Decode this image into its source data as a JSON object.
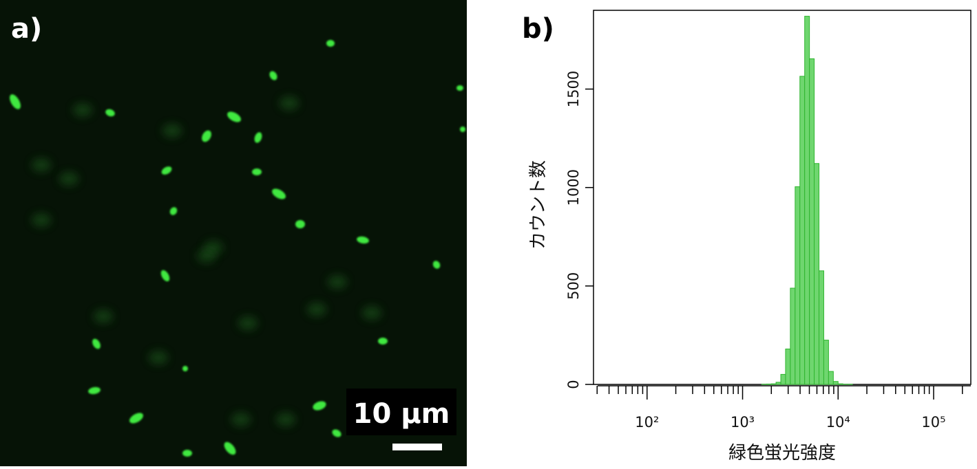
{
  "panel_a": {
    "label": "a)",
    "scale_bar_label": "10 µm"
  },
  "chart_data": {
    "type": "histogram",
    "panel_label": "b)",
    "x_label": "緑色蛍光強度",
    "y_label": "カウント数",
    "x_log": true,
    "bins": [
      1585,
      1778,
      1995,
      2239,
      2512,
      2818,
      3162,
      3548,
      3981,
      4467,
      5012,
      5623,
      6310,
      7079,
      7943,
      8913,
      10000,
      11220,
      12589,
      14125
    ],
    "values": [
      1,
      2,
      3,
      11,
      51,
      180,
      489,
      1004,
      1565,
      1870,
      1654,
      1122,
      577,
      225,
      66,
      15,
      3,
      1,
      1
    ],
    "color": "#6fd66f",
    "edge_color": "#2fb52f",
    "xlim": [
      27.5,
      245000
    ],
    "ylim": [
      0,
      1900
    ],
    "xticks": [
      {
        "value": 100,
        "label": "10²"
      },
      {
        "value": 1000,
        "label": "10³"
      },
      {
        "value": 10000,
        "label": "10⁴"
      },
      {
        "value": 100000,
        "label": "10⁵"
      }
    ],
    "yticks": [
      0,
      500,
      1000,
      1500
    ]
  }
}
